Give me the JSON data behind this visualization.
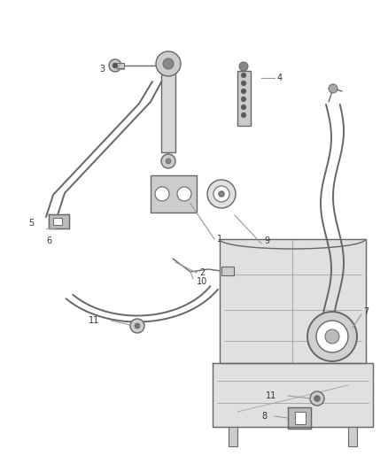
{
  "bg_color": "#ffffff",
  "line_color": "#666666",
  "label_color": "#333333",
  "leader_color": "#999999",
  "label_fontsize": 7.0,
  "lw": 1.0
}
